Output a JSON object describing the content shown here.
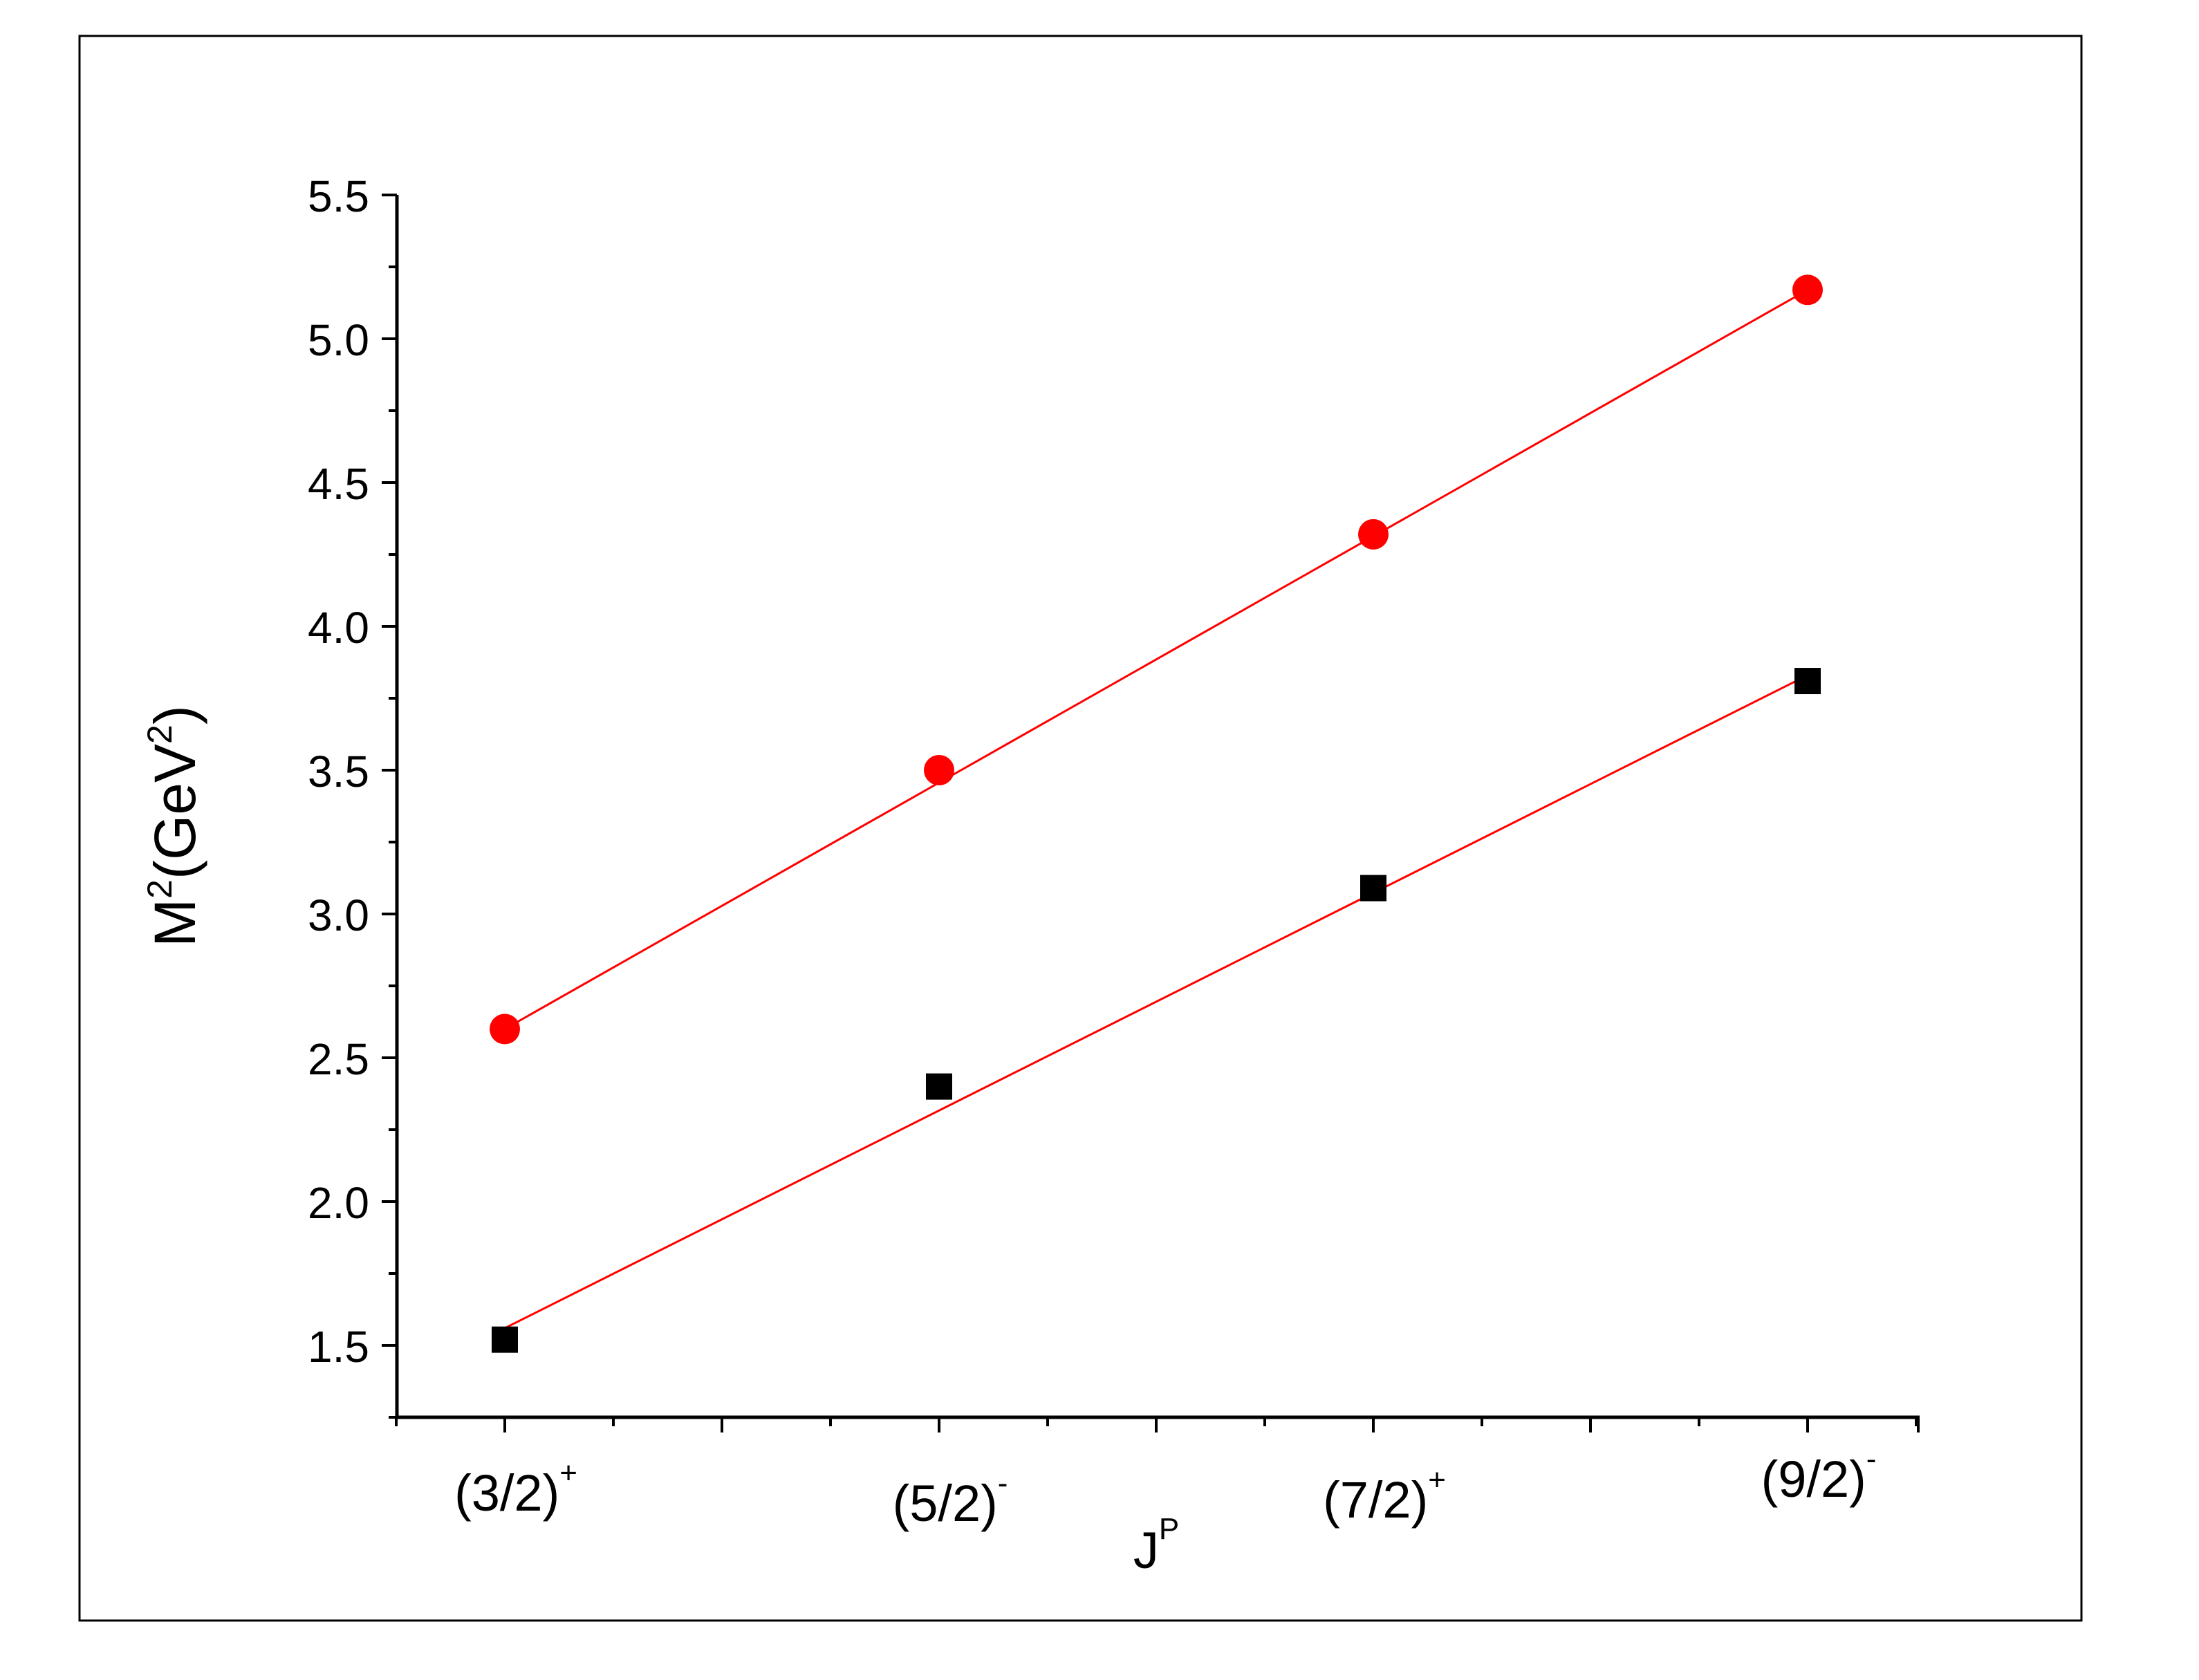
{
  "chart_data": {
    "type": "scatter",
    "xlabel": "J",
    "xlabel_sup": "P",
    "ylabel": "M",
    "ylabel_sup_1": "2",
    "ylabel_mid": "(GeV",
    "ylabel_sup_2": "2",
    "ylabel_end": ")",
    "categories": [
      {
        "base": "(3/2)",
        "sup": "+"
      },
      {
        "base": "(5/2)",
        "sup": "-"
      },
      {
        "base": "(7/2)",
        "sup": "+"
      },
      {
        "base": "(9/2)",
        "sup": "-"
      }
    ],
    "ylim": [
      1.25,
      5.5
    ],
    "yticks": [
      "1.5",
      "2.0",
      "2.5",
      "3.0",
      "3.5",
      "4.0",
      "4.5",
      "5.0",
      "5.5"
    ],
    "grid": false,
    "legend": "none",
    "series": [
      {
        "marker": "circle",
        "color": "#ff0000",
        "values": [
          2.6,
          3.5,
          4.32,
          5.17
        ],
        "fit": {
          "color": "#ff0000",
          "start": 2.6,
          "end": 5.17
        }
      },
      {
        "marker": "square",
        "color": "#000000",
        "values": [
          1.52,
          2.4,
          3.09,
          3.81
        ],
        "fit": {
          "color": "#ff0000",
          "start": 1.56,
          "end": 3.83
        }
      }
    ]
  }
}
